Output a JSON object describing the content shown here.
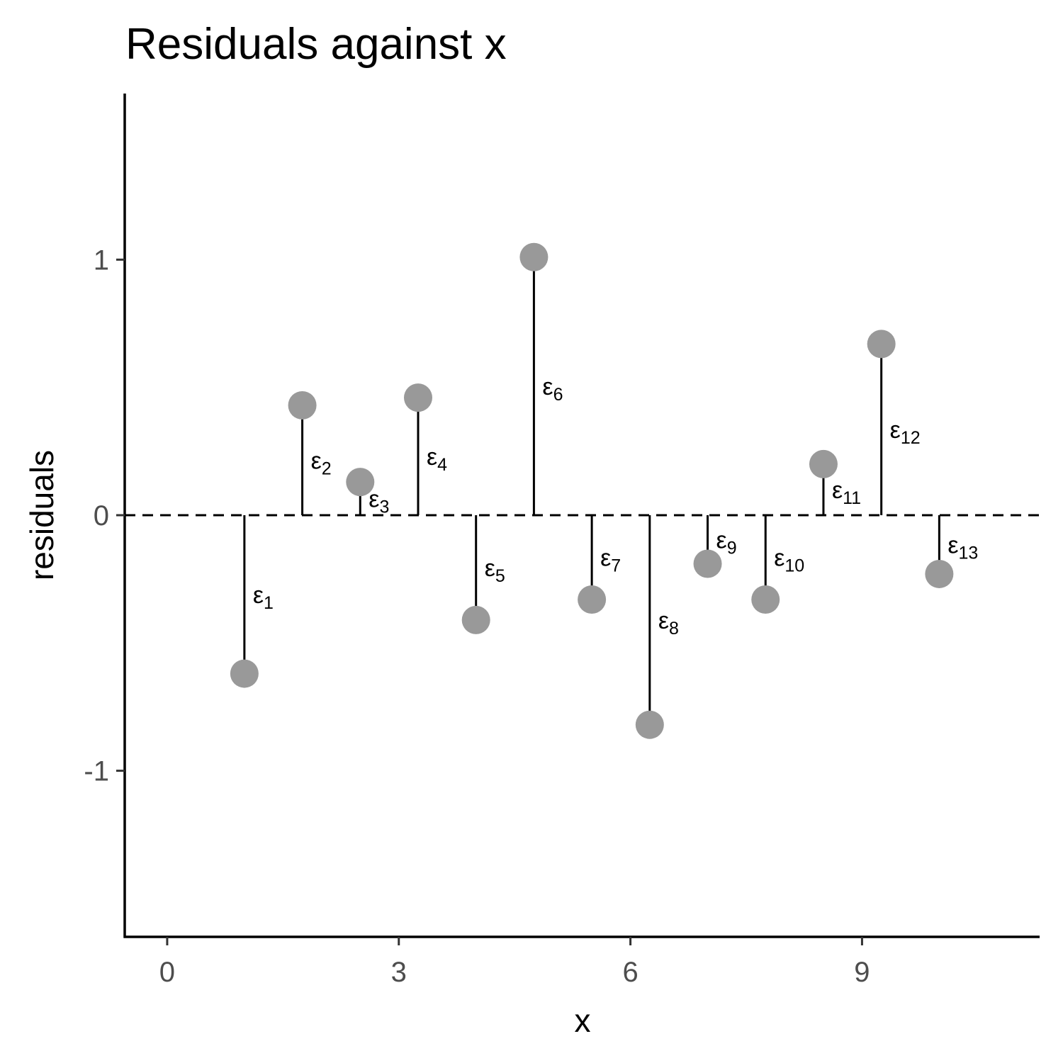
{
  "chart_data": {
    "type": "scatter",
    "title": "Residuals against x",
    "xlabel": "x",
    "ylabel": "residuals",
    "xlim": [
      -0.55,
      11.3
    ],
    "ylim": [
      -1.65,
      1.65
    ],
    "x_ticks": [
      0,
      3,
      6,
      9
    ],
    "y_ticks": [
      -1,
      0,
      1
    ],
    "x_tick_labels": [
      "0",
      "3",
      "6",
      "9"
    ],
    "y_tick_labels": [
      "-1",
      "0",
      "1"
    ],
    "reference_line": {
      "y": 0,
      "style": "dashed"
    },
    "grid": false,
    "legend": "none",
    "point_color": "#999999",
    "segment_color": "#000000",
    "points": [
      {
        "x": 1.0,
        "y": -0.62,
        "label_base": "ε",
        "label_sub": "1"
      },
      {
        "x": 1.75,
        "y": 0.43,
        "label_base": "ε",
        "label_sub": "2"
      },
      {
        "x": 2.5,
        "y": 0.13,
        "label_base": "ε",
        "label_sub": "3"
      },
      {
        "x": 3.25,
        "y": 0.46,
        "label_base": "ε",
        "label_sub": "4"
      },
      {
        "x": 4.0,
        "y": -0.41,
        "label_base": "ε",
        "label_sub": "5"
      },
      {
        "x": 4.75,
        "y": 1.01,
        "label_base": "ε",
        "label_sub": "6"
      },
      {
        "x": 5.5,
        "y": -0.33,
        "label_base": "ε",
        "label_sub": "7"
      },
      {
        "x": 6.25,
        "y": -0.82,
        "label_base": "ε",
        "label_sub": "8"
      },
      {
        "x": 7.0,
        "y": -0.19,
        "label_base": "ε",
        "label_sub": "9"
      },
      {
        "x": 7.75,
        "y": -0.33,
        "label_base": "ε",
        "label_sub": "10"
      },
      {
        "x": 8.5,
        "y": 0.2,
        "label_base": "ε",
        "label_sub": "11"
      },
      {
        "x": 9.25,
        "y": 0.67,
        "label_base": "ε",
        "label_sub": "12"
      },
      {
        "x": 10.0,
        "y": -0.23,
        "label_base": "ε",
        "label_sub": "13"
      }
    ]
  }
}
